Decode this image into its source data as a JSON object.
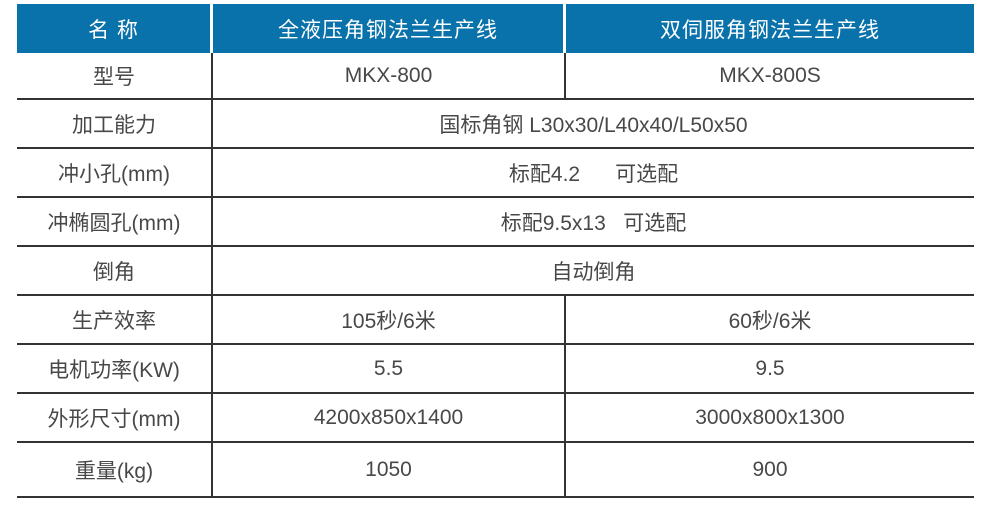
{
  "table": {
    "colors": {
      "header_bg": "#0a72ab",
      "header_text": "#ffffff",
      "body_text": "#48484a",
      "grid_line": "#333333"
    },
    "header": {
      "name_label": "名 称",
      "product_a": "全液压角钢法兰生产线",
      "product_b": "双伺服角钢法兰生产线"
    },
    "rows": [
      {
        "label": "型号",
        "a": "MKX-800",
        "b": "MKX-800S"
      },
      {
        "label": "加工能力",
        "merged": "国标角钢 L30x30/L40x40/L50x50"
      },
      {
        "label": "冲小孔(mm)",
        "merged": "标配4.2      可选配"
      },
      {
        "label": "冲椭圆孔(mm)",
        "merged": "标配9.5x13   可选配"
      },
      {
        "label": "倒角",
        "merged": "自动倒角"
      },
      {
        "label": "生产效率",
        "a": "105秒/6米",
        "b": "60秒/6米"
      },
      {
        "label": "电机功率(KW)",
        "a": "5.5",
        "b": "9.5"
      },
      {
        "label": "外形尺寸(mm)",
        "a": "4200x850x1400",
        "b": "3000x800x1300"
      },
      {
        "label": "重量(kg)",
        "a": "1050",
        "b": "900"
      }
    ]
  }
}
